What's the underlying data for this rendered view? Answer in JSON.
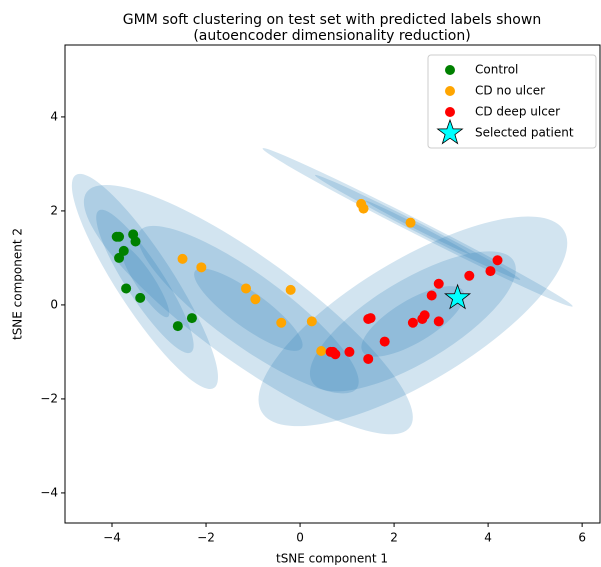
{
  "chart_data": {
    "type": "scatter",
    "title": "GMM soft clustering on test set with predicted labels shown",
    "subtitle": "(autoencoder dimensionality reduction)",
    "x_label": "tSNE component 1",
    "y_label": "tSNE component 2",
    "xlim": [
      -5.0,
      6.38
    ],
    "ylim": [
      -4.64,
      5.53
    ],
    "xticks": [
      {
        "value": -4,
        "label": "−4"
      },
      {
        "value": -2,
        "label": "−2"
      },
      0,
      2,
      4,
      6
    ],
    "yticks": [
      {
        "value": -4,
        "label": "−4"
      },
      {
        "value": -2,
        "label": "−2"
      },
      0,
      2,
      4
    ],
    "legend": "upper right",
    "component_color": "#1f77b4",
    "components": [
      {
        "center": [
          -3.3,
          0.5
        ],
        "angle": -57,
        "ellipses": [
          [
            5.4,
            1.2
          ],
          [
            3.6,
            0.8
          ],
          [
            1.8,
            0.4
          ]
        ]
      },
      {
        "center": [
          -1.1,
          -0.1
        ],
        "angle": -36,
        "ellipses": [
          [
            8.5,
            2.2
          ],
          [
            5.7,
            1.5
          ],
          [
            2.8,
            0.75
          ]
        ]
      },
      {
        "center": [
          2.4,
          -0.35
        ],
        "angle": 31,
        "ellipses": [
          [
            7.5,
            2.6
          ],
          [
            5.0,
            1.75
          ],
          [
            2.5,
            0.9
          ]
        ]
      },
      {
        "center": [
          2.5,
          1.65
        ],
        "angle": -27,
        "ellipses": [
          [
            7.4,
            0.3
          ],
          [
            4.9,
            0.2
          ],
          [
            2.5,
            0.1
          ]
        ]
      }
    ],
    "series": [
      {
        "name": "Control",
        "color": "#008000",
        "marker": "circle",
        "x": [
          -3.9,
          -3.85,
          -3.55,
          -3.5,
          -3.75,
          -3.85,
          -3.7,
          -3.4,
          -2.3,
          -2.6
        ],
        "values": [
          1.45,
          1.45,
          1.5,
          1.35,
          1.15,
          1.0,
          0.35,
          0.15,
          -0.28,
          -0.45
        ]
      },
      {
        "name": "CD no ulcer",
        "color": "#ffa500",
        "marker": "circle",
        "x": [
          1.3,
          1.35,
          2.35,
          -2.5,
          -2.1,
          -1.15,
          -0.95,
          -0.2,
          -0.4,
          0.25,
          0.45
        ],
        "values": [
          2.15,
          2.05,
          1.75,
          0.98,
          0.8,
          0.35,
          0.12,
          0.32,
          -0.38,
          -0.35,
          -0.98
        ]
      },
      {
        "name": "CD deep ulcer",
        "color": "#ff0000",
        "marker": "circle",
        "x": [
          4.2,
          4.05,
          3.6,
          2.95,
          2.8,
          2.95,
          2.4,
          2.6,
          2.65,
          1.5,
          1.45,
          1.8,
          1.45,
          1.05,
          0.75,
          0.65,
          0.7
        ],
        "values": [
          0.95,
          0.72,
          0.62,
          0.45,
          0.2,
          -0.35,
          -0.38,
          -0.3,
          -0.22,
          -0.28,
          -0.3,
          -0.78,
          -1.15,
          -1.0,
          -1.05,
          -1.0,
          -1.0
        ]
      },
      {
        "name": "Selected patient",
        "color": "#00ffff",
        "marker": "star",
        "x": [
          3.35
        ],
        "values": [
          0.15
        ]
      }
    ]
  }
}
